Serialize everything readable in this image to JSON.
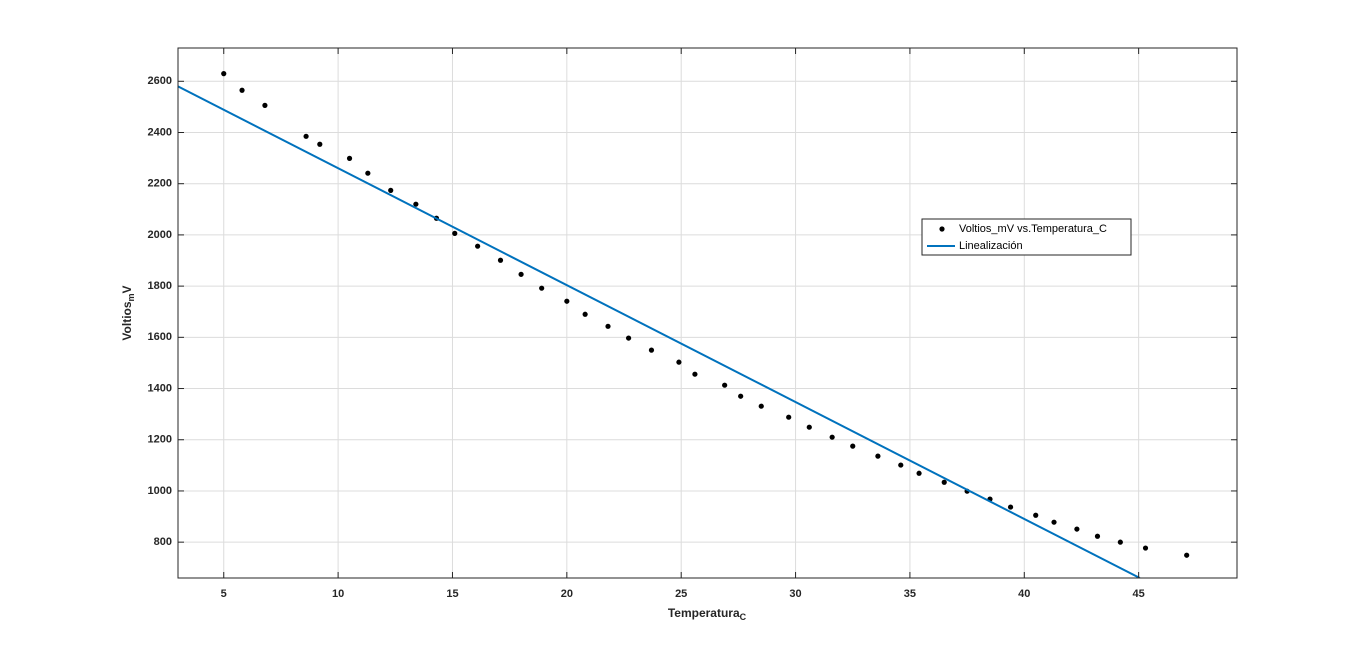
{
  "chart_data": {
    "type": "scatter",
    "xlabel": "Temperatura_C",
    "ylabel": "Voltios_mV",
    "xlim": [
      3,
      49.3
    ],
    "ylim": [
      660,
      2730
    ],
    "xticks": [
      5,
      10,
      15,
      20,
      25,
      30,
      35,
      40,
      45
    ],
    "yticks": [
      800,
      1000,
      1200,
      1400,
      1600,
      1800,
      2000,
      2200,
      2400,
      2600
    ],
    "grid": true,
    "legend": "upper right",
    "series": [
      {
        "name": "Voltios_mV vs.Temperatura_C",
        "color": "#000000",
        "mode": "markers",
        "x": [
          5,
          5.8,
          6.8,
          8.6,
          9.2,
          10.5,
          11.3,
          12.3,
          13.4,
          14.3,
          15.1,
          16.1,
          17.1,
          18.0,
          18.9,
          20.0,
          20.8,
          21.8,
          22.7,
          23.7,
          24.9,
          25.6,
          26.9,
          27.6,
          28.5,
          29.7,
          30.6,
          31.6,
          32.5,
          33.6,
          34.6,
          35.4,
          36.5,
          37.5,
          38.5,
          39.4,
          40.5,
          41.3,
          42.3,
          43.2,
          44.2,
          45.3,
          47.1
        ],
        "y": [
          2630,
          2565,
          2506,
          2385,
          2354,
          2299,
          2241,
          2174,
          2120,
          2065,
          2006,
          1956,
          1901,
          1846,
          1792,
          1741,
          1690,
          1643,
          1597,
          1550,
          1503,
          1456,
          1413,
          1370,
          1331,
          1288,
          1249,
          1210,
          1175,
          1136,
          1101,
          1069,
          1034,
          999,
          968,
          937,
          905,
          878,
          851,
          823,
          800,
          777,
          749
        ]
      },
      {
        "name": "Linealización",
        "color": "#0072bd",
        "mode": "line",
        "x": [
          3,
          45.05
        ],
        "y": [
          2580,
          660
        ]
      }
    ]
  }
}
